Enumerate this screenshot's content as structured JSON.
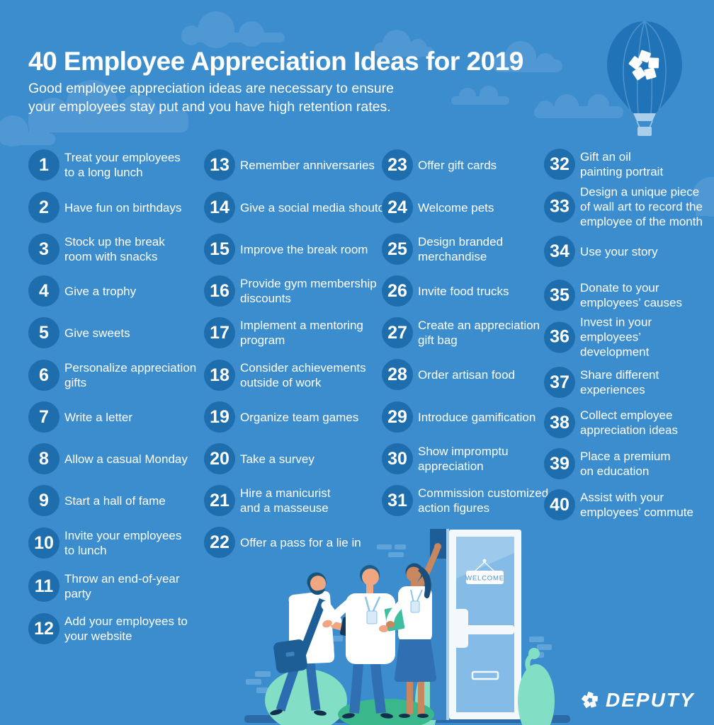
{
  "header": {
    "title": "40 Employee Appreciation Ideas for 2019",
    "subtitle": "Good employee appreciation ideas are necessary to ensure\nyour employees stay put and you have high retention rates."
  },
  "items": [
    {
      "n": "1",
      "text": "Treat your employees\nto a long lunch"
    },
    {
      "n": "2",
      "text": "Have fun on birthdays"
    },
    {
      "n": "3",
      "text": "Stock up the break\nroom with snacks"
    },
    {
      "n": "4",
      "text": "Give a trophy"
    },
    {
      "n": "5",
      "text": "Give sweets"
    },
    {
      "n": "6",
      "text": "Personalize appreciation\ngifts"
    },
    {
      "n": "7",
      "text": "Write a letter"
    },
    {
      "n": "8",
      "text": "Allow a casual Monday"
    },
    {
      "n": "9",
      "text": "Start a hall of fame"
    },
    {
      "n": "10",
      "text": "Invite your employees\nto lunch"
    },
    {
      "n": "11",
      "text": "Throw an end-of-year\nparty"
    },
    {
      "n": "12",
      "text": "Add your employees to\nyour website"
    },
    {
      "n": "13",
      "text": "Remember anniversaries"
    },
    {
      "n": "14",
      "text": "Give a social media shoutout"
    },
    {
      "n": "15",
      "text": "Improve the break room"
    },
    {
      "n": "16",
      "text": "Provide gym membership\ndiscounts"
    },
    {
      "n": "17",
      "text": "Implement a mentoring\nprogram"
    },
    {
      "n": "18",
      "text": "Consider achievements\noutside of work"
    },
    {
      "n": "19",
      "text": "Organize team games"
    },
    {
      "n": "20",
      "text": "Take a survey"
    },
    {
      "n": "21",
      "text": "Hire a manicurist\nand a masseuse"
    },
    {
      "n": "22",
      "text": "Offer a pass for a lie in"
    },
    {
      "n": "23",
      "text": "Offer gift cards"
    },
    {
      "n": "24",
      "text": "Welcome pets"
    },
    {
      "n": "25",
      "text": "Design branded\nmerchandise"
    },
    {
      "n": "26",
      "text": "Invite food trucks"
    },
    {
      "n": "27",
      "text": "Create an appreciation\ngift bag"
    },
    {
      "n": "28",
      "text": "Order artisan food"
    },
    {
      "n": "29",
      "text": "Introduce gamification"
    },
    {
      "n": "30",
      "text": "Show impromptu\nappreciation"
    },
    {
      "n": "31",
      "text": "Commission customized\naction figures"
    },
    {
      "n": "32",
      "text": "Gift an oil\npainting portrait"
    },
    {
      "n": "33",
      "text": "Design a unique piece\nof wall art to record the\nemployee of the month"
    },
    {
      "n": "34",
      "text": "Use your story"
    },
    {
      "n": "35",
      "text": "Donate to your\nemployees’ causes"
    },
    {
      "n": "36",
      "text": "Invest in your employees’\ndevelopment"
    },
    {
      "n": "37",
      "text": "Share different\nexperiences"
    },
    {
      "n": "38",
      "text": "Collect employee\nappreciation ideas"
    },
    {
      "n": "39",
      "text": "Place a premium\non education"
    },
    {
      "n": "40",
      "text": "Assist with your\nemployees’ commute"
    }
  ],
  "illustration": {
    "welcome_sign": "WELCOME"
  },
  "footer": {
    "brand": "DEPUTY"
  },
  "icons": {
    "deputy-star-icon": "five-pentagon star mark",
    "hot-air-balloon-icon": "balloon with deputy star",
    "cloud-icon": "flat-bottom cloud shape"
  },
  "colors": {
    "background": "#3B8DCE",
    "cloud": "#5098D4",
    "number_circle": "#1E6DAD",
    "text": "#FFFFFF",
    "balloon": "#2173B8",
    "balloon_basket": "#A9CFEA",
    "door": "#85BCE7",
    "door_frame": "#F2F8FC",
    "welcome_text": "#4D92C8",
    "bush_light": "#82DFC6",
    "bush_dark": "#3BB78C",
    "ground": "#2A6AA6",
    "pants": "#2F6FB2",
    "skin_light": "#F0A680",
    "skin_tan": "#C8875E",
    "hair_dark": "#1B4F79"
  }
}
